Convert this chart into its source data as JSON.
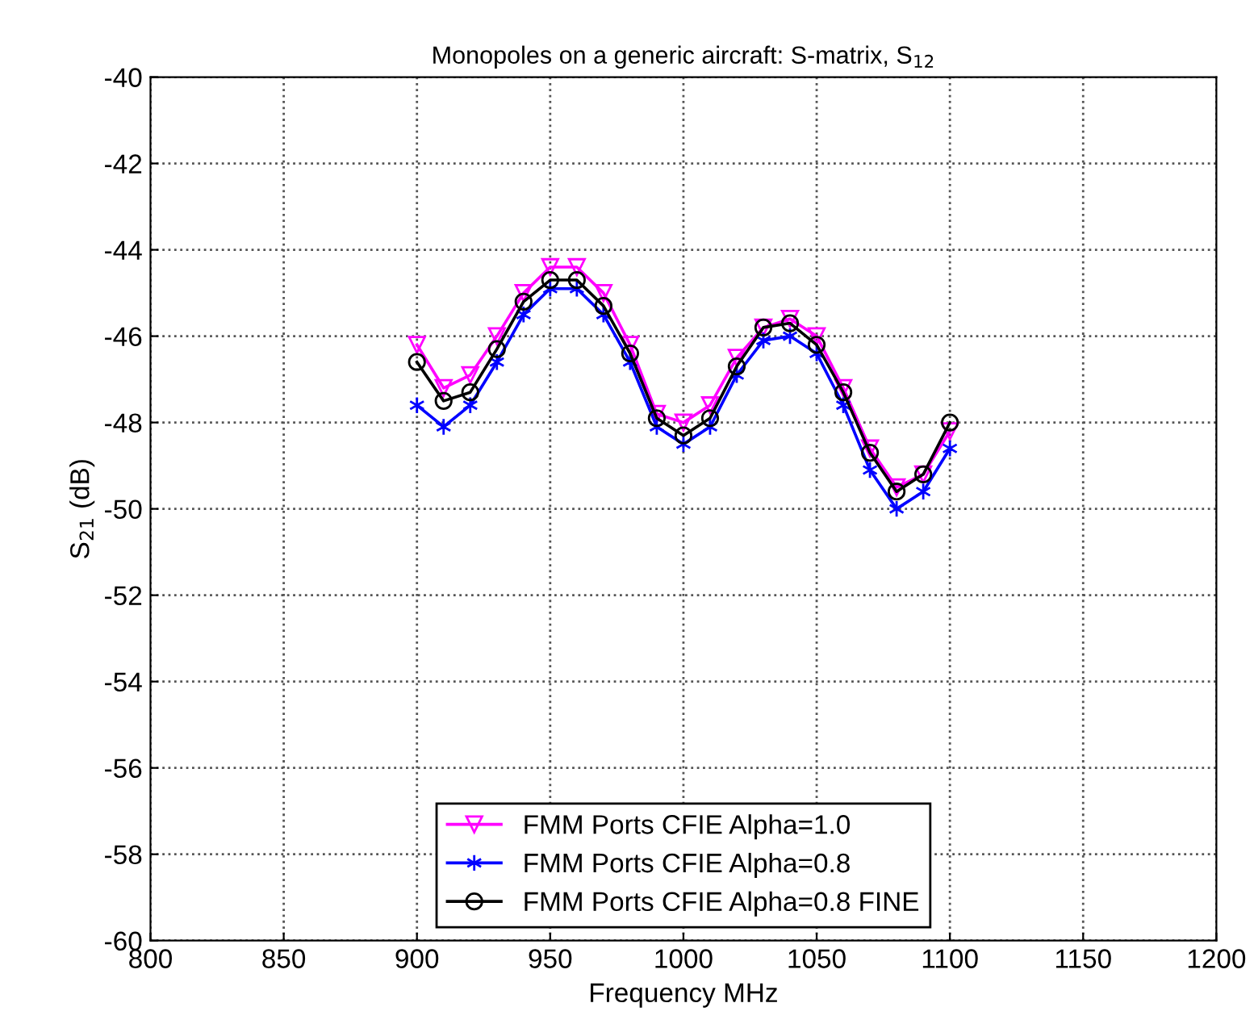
{
  "chart_data": {
    "type": "line",
    "title": "Monopoles on a generic aircraft: S-matrix, S$_{12}$",
    "xlabel": "Frequency MHz",
    "ylabel": "S$_{21}$ (dB)",
    "x": [
      900,
      910,
      920,
      930,
      940,
      950,
      960,
      970,
      980,
      990,
      1000,
      1010,
      1020,
      1030,
      1040,
      1050,
      1060,
      1070,
      1080,
      1090,
      1100
    ],
    "series": [
      {
        "name": "FMM Ports CFIE Alpha=1.0",
        "color": "#ff00ff",
        "marker": "triangle",
        "values": [
          -46.2,
          -47.2,
          -46.9,
          -46.0,
          -45.0,
          -44.4,
          -44.4,
          -45.0,
          -46.2,
          -47.8,
          -48.0,
          -47.6,
          -46.5,
          -45.8,
          -45.6,
          -46.0,
          -47.2,
          -48.6,
          -49.5,
          -49.2,
          -48.2
        ]
      },
      {
        "name": "FMM Ports CFIE Alpha=0.8",
        "color": "#0000ff",
        "marker": "cross",
        "values": [
          -47.6,
          -48.1,
          -47.6,
          -46.6,
          -45.5,
          -44.9,
          -44.9,
          -45.5,
          -46.6,
          -48.1,
          -48.5,
          -48.1,
          -46.9,
          -46.1,
          -46.0,
          -46.4,
          -47.6,
          -49.1,
          -50.0,
          -49.6,
          -48.6
        ]
      },
      {
        "name": "FMM Ports CFIE Alpha=0.8 FINE",
        "color": "#000000",
        "marker": "circle",
        "values": [
          -46.6,
          -47.5,
          -47.3,
          -46.3,
          -45.2,
          -44.7,
          -44.7,
          -45.3,
          -46.4,
          -47.9,
          -48.3,
          -47.9,
          -46.7,
          -45.8,
          -45.7,
          -46.2,
          -47.3,
          -48.7,
          -49.6,
          -49.2,
          -48.0
        ]
      }
    ],
    "xlim": [
      800,
      1200
    ],
    "xticks": [
      800,
      850,
      900,
      950,
      1000,
      1050,
      1100,
      1150,
      1200
    ],
    "ylim": [
      -60,
      -40
    ],
    "yticks": [
      -60,
      -58,
      -56,
      -54,
      -52,
      -50,
      -48,
      -46,
      -44,
      -42,
      -40
    ],
    "grid": true,
    "legend": "bottom",
    "line_style": "solid"
  }
}
